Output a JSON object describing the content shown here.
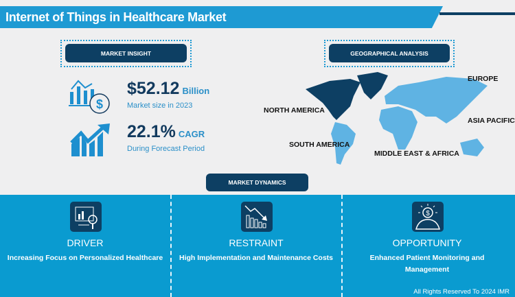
{
  "header": {
    "title": "Internet of Things in Healthcare Market"
  },
  "market_insight": {
    "label": "MARKET INSIGHT",
    "market_size": "$52.12",
    "market_size_unit": "Billion",
    "market_size_caption": "Market size in 2023",
    "cagr": "22.1%",
    "cagr_unit": "CAGR",
    "cagr_caption": "During Forecast Period"
  },
  "geo": {
    "label": "GEOGRAPHICAL ANALYSIS",
    "regions": [
      "NORTH AMERICA",
      "EUROPE",
      "ASIA PACIFIC",
      "SOUTH AMERICA",
      "MIDDLE EAST & AFRICA"
    ],
    "colors": {
      "highlight": "#0d3f63",
      "other": "#5fb3e3"
    }
  },
  "dynamics": {
    "label": "MARKET DYNAMICS",
    "items": [
      {
        "title": "DRIVER",
        "text": "Increasing Focus on Personalized Healthcare",
        "icon": "analytics-monitor-icon"
      },
      {
        "title": "RESTRAINT",
        "text": "High Implementation and Maintenance Costs",
        "icon": "declining-chart-icon"
      },
      {
        "title": "OPPORTUNITY",
        "text": "Enhanced Patient Monitoring and Management",
        "icon": "dollar-lightbulb-icon"
      }
    ]
  },
  "footer": "All Rights Reserved To 2024 IMR"
}
